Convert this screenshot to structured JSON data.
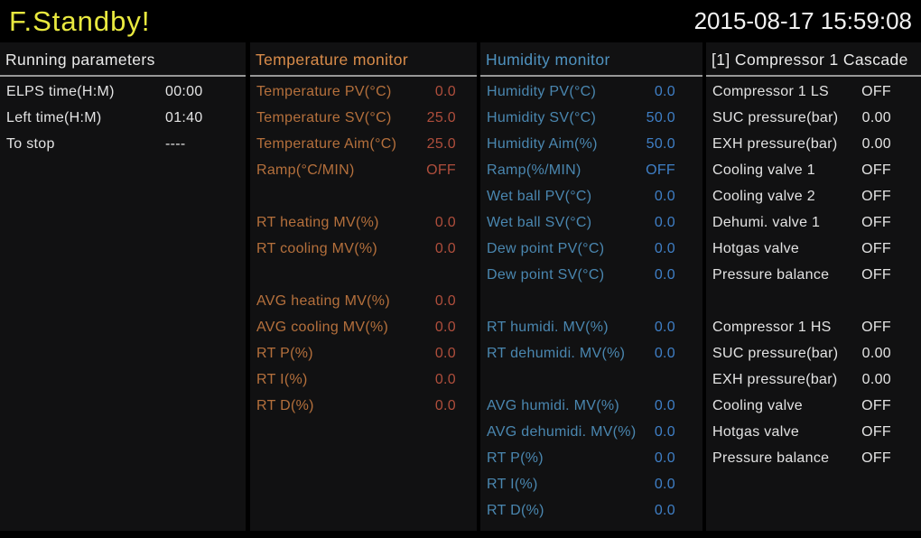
{
  "title_bar": {
    "status_title": "F.Standby!",
    "datetime": "2015-08-17 15:59:08"
  },
  "colors": {
    "background": "#000000",
    "panel_background": "#111112",
    "title_yellow": "#e9e93f",
    "white_text": "#e3e3e3",
    "header_underline": "#989898",
    "temperature_header": "#d98c4a",
    "temperature_label": "#b5703c",
    "temperature_value": "#af4e3c",
    "humidity_header": "#4f93c0",
    "humidity_label": "#4a87b0",
    "humidity_value": "#3f7fc6"
  },
  "panels": [
    {
      "name": "running-parameters",
      "title": "Running parameters",
      "rows": [
        {
          "label": "ELPS time(H:M)",
          "value": "00:00"
        },
        {
          "label": "Left time(H:M)",
          "value": "01:40"
        },
        {
          "label": "To stop",
          "value": "----"
        }
      ]
    },
    {
      "name": "temperature-monitor",
      "title": "Temperature monitor",
      "rows": [
        {
          "label": "Temperature PV(°C)",
          "value": "0.0"
        },
        {
          "label": "Temperature SV(°C)",
          "value": "25.0"
        },
        {
          "label": "Temperature Aim(°C)",
          "value": "25.0"
        },
        {
          "label": "Ramp(°C/MIN)",
          "value": "OFF"
        },
        {
          "spacer": true
        },
        {
          "label": "RT heating MV(%)",
          "value": "0.0"
        },
        {
          "label": "RT cooling MV(%)",
          "value": "0.0"
        },
        {
          "spacer": true
        },
        {
          "label": "AVG heating MV(%)",
          "value": "0.0"
        },
        {
          "label": "AVG cooling MV(%)",
          "value": "0.0"
        },
        {
          "label": "RT P(%)",
          "value": "0.0"
        },
        {
          "label": "RT I(%)",
          "value": "0.0"
        },
        {
          "label": "RT D(%)",
          "value": "0.0"
        }
      ]
    },
    {
      "name": "humidity-monitor",
      "title": "Humidity monitor",
      "rows": [
        {
          "label": "Humidity PV(°C)",
          "value": "0.0"
        },
        {
          "label": "Humidity SV(°C)",
          "value": "50.0"
        },
        {
          "label": "Humidity Aim(%)",
          "value": "50.0"
        },
        {
          "label": "Ramp(%/MIN)",
          "value": "OFF"
        },
        {
          "label": "Wet ball PV(°C)",
          "value": "0.0"
        },
        {
          "label": "Wet ball SV(°C)",
          "value": "0.0"
        },
        {
          "label": "Dew point PV(°C)",
          "value": "0.0"
        },
        {
          "label": "Dew point SV(°C)",
          "value": "0.0"
        },
        {
          "spacer": true
        },
        {
          "label": "RT humidi. MV(%)",
          "value": "0.0"
        },
        {
          "label": "RT dehumidi. MV(%)",
          "value": "0.0"
        },
        {
          "spacer": true
        },
        {
          "label": "AVG humidi. MV(%)",
          "value": "0.0"
        },
        {
          "label": "AVG dehumidi. MV(%)",
          "value": "0.0"
        },
        {
          "label": "RT P(%)",
          "value": "0.0"
        },
        {
          "label": "RT I(%)",
          "value": "0.0"
        },
        {
          "label": "RT D(%)",
          "value": "0.0"
        }
      ]
    },
    {
      "name": "compressor-1-cascade",
      "title": "[1] Compressor 1 Cascade",
      "rows": [
        {
          "label": "Compressor 1 LS",
          "value": "OFF"
        },
        {
          "label": "SUC pressure(bar)",
          "value": "0.00"
        },
        {
          "label": "EXH pressure(bar)",
          "value": "0.00"
        },
        {
          "label": "Cooling valve 1",
          "value": "OFF"
        },
        {
          "label": "Cooling valve 2",
          "value": "OFF"
        },
        {
          "label": "Dehumi. valve 1",
          "value": "OFF"
        },
        {
          "label": "Hotgas valve",
          "value": "OFF"
        },
        {
          "label": "Pressure balance",
          "value": "OFF"
        },
        {
          "spacer": true
        },
        {
          "label": "Compressor 1 HS",
          "value": "OFF"
        },
        {
          "label": "SUC pressure(bar)",
          "value": "0.00"
        },
        {
          "label": "EXH pressure(bar)",
          "value": "0.00"
        },
        {
          "label": "Cooling valve",
          "value": "OFF"
        },
        {
          "label": "Hotgas valve",
          "value": "OFF"
        },
        {
          "label": "Pressure balance",
          "value": "OFF"
        }
      ]
    }
  ]
}
